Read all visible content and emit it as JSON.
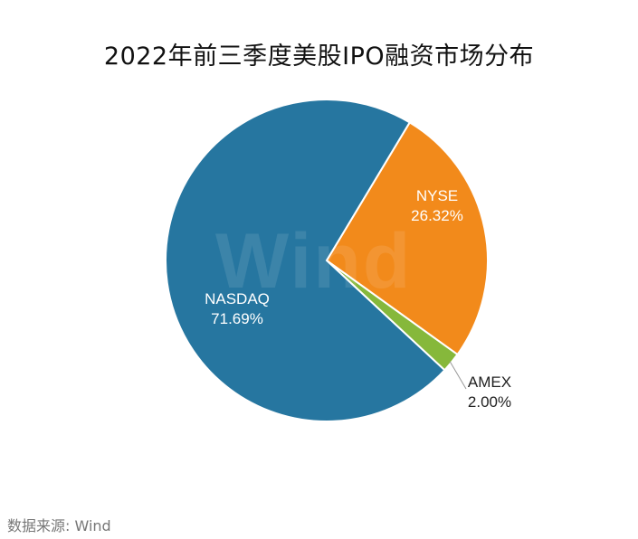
{
  "title": "2022年前三季度美股IPO融资市场分布",
  "source": "数据来源: Wind",
  "watermark": "Wind",
  "chart_data": {
    "type": "pie",
    "title": "2022年前三季度美股IPO融资市场分布",
    "slices": [
      {
        "name": "NYSE",
        "value": 26.32,
        "label": "26.32%",
        "color": "#F28A1B"
      },
      {
        "name": "AMEX",
        "value": 2.0,
        "label": "2.00%",
        "color": "#86B83B"
      },
      {
        "name": "NASDAQ",
        "value": 71.69,
        "label": "71.69%",
        "color": "#2676A0"
      }
    ],
    "start_angle_deg": 31,
    "direction": "clockwise",
    "label_color_inside": "#ffffff"
  }
}
